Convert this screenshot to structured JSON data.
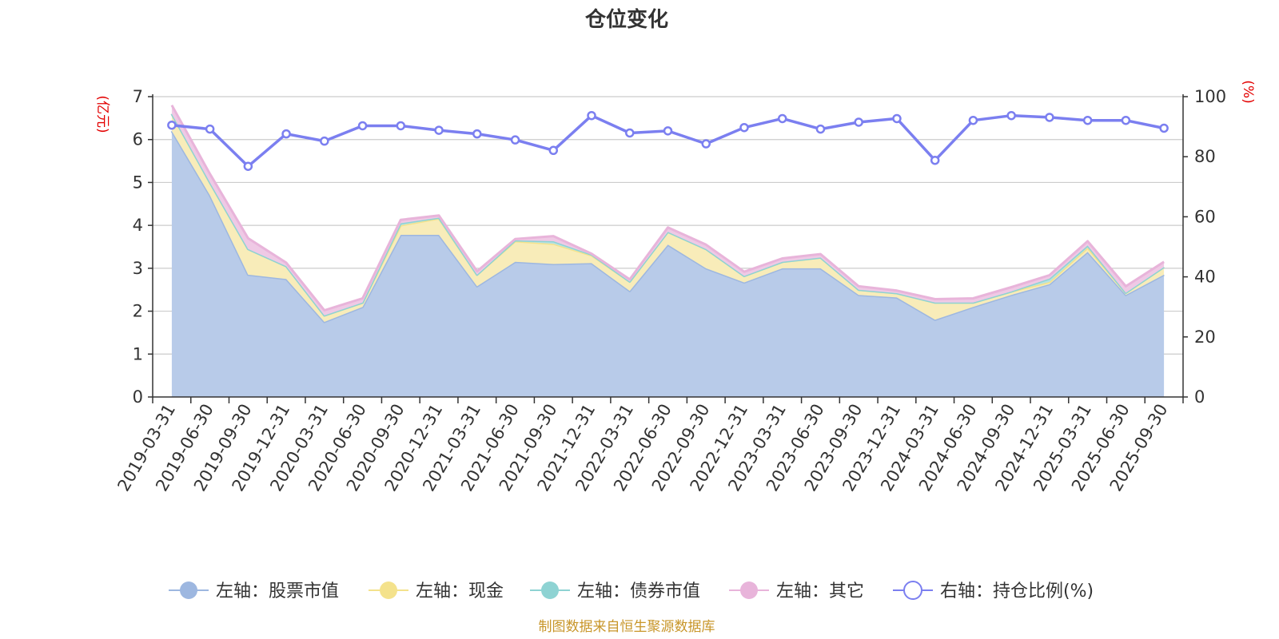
{
  "chart_data": {
    "type": "area",
    "title": "仓位变化",
    "categories": [
      "2019-03-31",
      "2019-06-30",
      "2019-09-30",
      "2019-12-31",
      "2020-03-31",
      "2020-06-30",
      "2020-09-30",
      "2020-12-31",
      "2021-03-31",
      "2021-06-30",
      "2021-09-30",
      "2021-12-31",
      "2022-03-31",
      "2022-06-30",
      "2022-09-30",
      "2022-12-31",
      "2023-03-31",
      "2023-06-30",
      "2023-09-30",
      "2023-12-31",
      "2024-03-31",
      "2024-06-30",
      "2024-09-30",
      "2024-12-31",
      "2025-03-31",
      "2025-06-30",
      "2025-09-30"
    ],
    "left_axis": {
      "name": "(亿元)",
      "ylim": [
        0,
        7
      ],
      "ticks": [
        "0",
        "1",
        "2",
        "3",
        "4",
        "5",
        "6",
        "7"
      ]
    },
    "right_axis": {
      "name": "(%)",
      "ylim": [
        0,
        100
      ],
      "ticks": [
        "0",
        "20",
        "40",
        "60",
        "80",
        "100"
      ]
    },
    "series": [
      {
        "name": "左轴：股票市值",
        "axis": "left",
        "stacked": true,
        "color": "#9db7e0",
        "fill": "#b8cbe9",
        "values": [
          6.2,
          4.7,
          2.85,
          2.75,
          1.75,
          2.1,
          3.78,
          3.78,
          2.58,
          3.15,
          3.1,
          3.12,
          2.47,
          3.55,
          3.0,
          2.67,
          3.0,
          3.0,
          2.38,
          2.32,
          1.8,
          2.1,
          2.38,
          2.63,
          3.38,
          2.38,
          2.85
        ]
      },
      {
        "name": "左轴：现金",
        "axis": "left",
        "stacked": true,
        "color": "#f4e28c",
        "fill": "#f8ecb9",
        "values": [
          0.4,
          0.3,
          0.6,
          0.3,
          0.15,
          0.1,
          0.22,
          0.38,
          0.27,
          0.48,
          0.47,
          0.18,
          0.22,
          0.3,
          0.45,
          0.15,
          0.15,
          0.25,
          0.12,
          0.1,
          0.4,
          0.1,
          0.08,
          0.05,
          0.1,
          0.05,
          0.18
        ]
      },
      {
        "name": "左轴：债券市值",
        "axis": "left",
        "stacked": true,
        "color": "#8ed3d3",
        "fill": "#b7e3e3",
        "values": [
          0,
          0,
          0,
          0,
          0,
          0,
          0.05,
          0.02,
          0,
          0.02,
          0.06,
          0.02,
          0,
          0,
          0,
          0,
          0,
          0,
          0,
          0,
          0,
          0,
          0,
          0.08,
          0.05,
          0,
          0
        ]
      },
      {
        "name": "左轴：其它",
        "axis": "left",
        "stacked": true,
        "color": "#e8b4da",
        "fill": "#efc9e5",
        "values": [
          0.2,
          0.2,
          0.25,
          0.08,
          0.12,
          0.1,
          0.08,
          0.05,
          0.08,
          0.03,
          0.12,
          0.02,
          0.05,
          0.1,
          0.1,
          0.1,
          0.08,
          0.08,
          0.08,
          0.06,
          0.08,
          0.1,
          0.1,
          0.08,
          0.1,
          0.15,
          0.12
        ]
      },
      {
        "name": "右轴：持仓比例(%)",
        "axis": "right",
        "stacked": false,
        "color": "#7b7ff0",
        "values": [
          90.5,
          89.2,
          76.8,
          87.6,
          85.2,
          90.3,
          90.3,
          88.8,
          87.6,
          85.6,
          82.1,
          93.7,
          87.9,
          88.6,
          84.3,
          89.7,
          92.7,
          89.2,
          91.5,
          92.7,
          78.8,
          92.1,
          93.7,
          93.1,
          92.1,
          92.1,
          89.5
        ]
      }
    ],
    "legend_position": "bottom",
    "grid": true
  },
  "source_note": "制图数据来自恒生聚源数据库"
}
